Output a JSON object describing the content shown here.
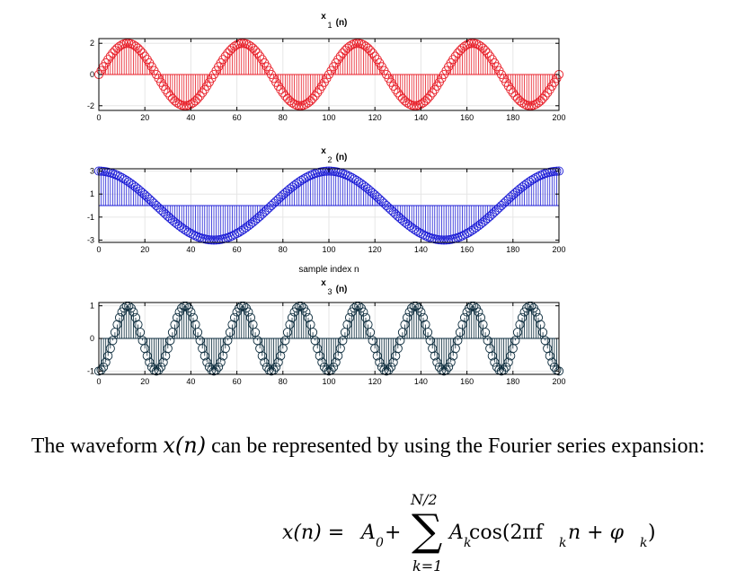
{
  "chart_data": [
    {
      "type": "stem",
      "title": "x",
      "title_sub": "1",
      "title_suffix": "(n)",
      "color": "#e8202a",
      "marker": "circle-open",
      "formula_desc": "2*sin(2*pi*n/50)",
      "n_start": 0,
      "n_end": 200,
      "amplitude": 2,
      "period": 50,
      "phase": "sin",
      "xlim": [
        0,
        200
      ],
      "ylim": [
        -2.3,
        2.3
      ],
      "xticks": [
        0,
        20,
        40,
        60,
        80,
        100,
        120,
        140,
        160,
        180,
        200
      ],
      "yticks": [
        -2,
        0,
        2
      ],
      "grid": true
    },
    {
      "type": "stem",
      "title": "x",
      "title_sub": "2",
      "title_suffix": "(n)",
      "color": "#1f1fd6",
      "marker": "circle-open",
      "formula_desc": "3*cos(2*pi*n/100)",
      "n_start": 0,
      "n_end": 200,
      "amplitude": 3,
      "period": 100,
      "phase": "cos",
      "xlim": [
        0,
        200
      ],
      "ylim": [
        -3.2,
        3.2
      ],
      "xticks": [
        0,
        20,
        40,
        60,
        80,
        100,
        120,
        140,
        160,
        180,
        200
      ],
      "yticks": [
        -3,
        -1,
        1,
        3
      ],
      "xlabel": "sample index n",
      "grid": true
    },
    {
      "type": "stem",
      "title": "x",
      "title_sub": "3",
      "title_suffix": "(n)",
      "color": "#0b2b3c",
      "marker": "circle-open",
      "formula_desc": "-cos(2*pi*n/25)",
      "n_start": 0,
      "n_end": 200,
      "amplitude": -1,
      "period": 25,
      "phase": "cos",
      "xlim": [
        0,
        200
      ],
      "ylim": [
        -1.1,
        1.1
      ],
      "xticks": [
        0,
        20,
        40,
        60,
        80,
        100,
        120,
        140,
        160,
        180,
        200
      ],
      "yticks": [
        -1,
        0,
        1
      ],
      "grid": true
    }
  ],
  "text": {
    "before": "The waveform ",
    "var": "x(n)",
    "after": " can be represented by using the Fourier series expansion:"
  },
  "formula": {
    "lhs": "x(n) = ",
    "a0": "A",
    "a0_sub": "0",
    "plus": " + ",
    "sum_upper": "N/2",
    "sum_lower": "k=1",
    "sigma": "∑",
    "ak": "A",
    "ak_sub": "k",
    "cos": " cos(2πf",
    "fk_sub": "k",
    "rest": "n + φ",
    "phik_sub": "k",
    "close": ")"
  }
}
